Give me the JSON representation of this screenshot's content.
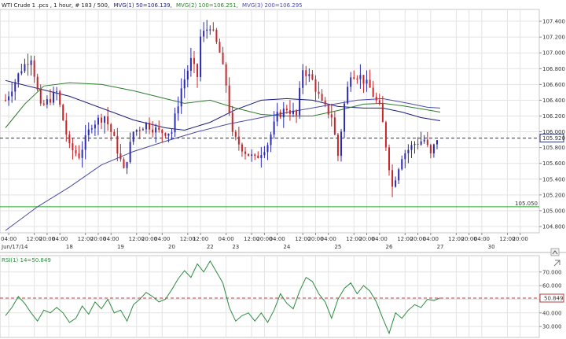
{
  "header": {
    "instrument": "WTI Crude 1 .pcs , 1 hour, # 183 / 500,",
    "mvg1": "MVG(1) 50=106.139,",
    "mvg2": "MVG(2) 100=106.251,",
    "mvg3": "MVG(3) 200=106.295"
  },
  "colors": {
    "up": "#2b2bb0",
    "down": "#c8242a",
    "mvg1": "#1c1c7a",
    "mvg2": "#2e7d2e",
    "mvg3": "#4a4aa8",
    "support": "#22aa22",
    "last_price": "#28336e",
    "rsi_line": "#2e8b40",
    "rsi_ref": "#b83c3c",
    "grid": "#e3e3e3"
  },
  "chart_data": [
    {
      "type": "candlestick",
      "y_ticks": [
        "107.400",
        "107.200",
        "107.000",
        "106.800",
        "106.600",
        "106.400",
        "106.200",
        "106.000",
        "105.800",
        "105.600",
        "105.400",
        "105.200",
        "105.000",
        "104.800"
      ],
      "ylim": [
        104.72,
        107.55
      ],
      "x_tick_labels": [
        {
          "i": 1,
          "text": "04:00"
        },
        {
          "i": 9,
          "text": "12:00"
        },
        {
          "i": 13,
          "text": "20:00"
        },
        {
          "i": 17,
          "text": "04:00"
        },
        {
          "i": 25,
          "text": "12:00"
        },
        {
          "i": 29,
          "text": "20:00"
        },
        {
          "i": 33,
          "text": "04:00"
        },
        {
          "i": 41,
          "text": "12:00"
        },
        {
          "i": 45,
          "text": "20:00"
        },
        {
          "i": 49,
          "text": "04:00"
        },
        {
          "i": 57,
          "text": "12:00"
        },
        {
          "i": 61,
          "text": "12:00"
        },
        {
          "i": 69,
          "text": "04:00"
        },
        {
          "i": 77,
          "text": "12:00"
        },
        {
          "i": 81,
          "text": "20:00"
        },
        {
          "i": 85,
          "text": "04:00"
        },
        {
          "i": 93,
          "text": "12:00"
        },
        {
          "i": 97,
          "text": "20:00"
        },
        {
          "i": 101,
          "text": "04:00"
        },
        {
          "i": 109,
          "text": "12:00"
        },
        {
          "i": 113,
          "text": "20:00"
        },
        {
          "i": 117,
          "text": "04:00"
        },
        {
          "i": 125,
          "text": "12:00"
        },
        {
          "i": 129,
          "text": "20:00"
        },
        {
          "i": 133,
          "text": "04:00"
        },
        {
          "i": 141,
          "text": "12:00"
        },
        {
          "i": 145,
          "text": "20:00"
        },
        {
          "i": 149,
          "text": "04:00"
        },
        {
          "i": 157,
          "text": "12:00"
        },
        {
          "i": 161,
          "text": "20:00"
        }
      ],
      "date_labels": [
        {
          "i": 0,
          "text": "Jun/17/14"
        },
        {
          "i": 20,
          "text": "18"
        },
        {
          "i": 36,
          "text": "19"
        },
        {
          "i": 52,
          "text": "20"
        },
        {
          "i": 64,
          "text": "22"
        },
        {
          "i": 72,
          "text": "23"
        },
        {
          "i": 88,
          "text": "24"
        },
        {
          "i": 104,
          "text": "25"
        },
        {
          "i": 120,
          "text": "26"
        },
        {
          "i": 136,
          "text": "27"
        },
        {
          "i": 152,
          "text": "30"
        }
      ],
      "x_slots": 166,
      "candle_count": 136,
      "candle_anchors": [
        [
          0,
          106.4
        ],
        [
          5,
          106.8
        ],
        [
          8,
          106.95
        ],
        [
          11,
          106.3
        ],
        [
          16,
          106.5
        ],
        [
          20,
          105.8
        ],
        [
          23,
          105.7
        ],
        [
          27,
          106.1
        ],
        [
          31,
          106.2
        ],
        [
          34,
          105.9
        ],
        [
          37,
          105.5
        ],
        [
          40,
          106.0
        ],
        [
          44,
          106.1
        ],
        [
          48,
          106.0
        ],
        [
          52,
          106.0
        ],
        [
          55,
          106.55
        ],
        [
          58,
          106.9
        ],
        [
          60,
          106.7
        ],
        [
          61,
          107.2
        ],
        [
          63,
          107.3
        ],
        [
          64,
          107.35
        ],
        [
          67,
          107.0
        ],
        [
          69,
          106.6
        ],
        [
          71,
          105.95
        ],
        [
          75,
          105.75
        ],
        [
          78,
          105.65
        ],
        [
          82,
          105.85
        ],
        [
          85,
          106.2
        ],
        [
          88,
          106.3
        ],
        [
          91,
          106.2
        ],
        [
          93,
          106.8
        ],
        [
          96,
          106.65
        ],
        [
          99,
          106.35
        ],
        [
          102,
          106.2
        ],
        [
          104,
          105.7
        ],
        [
          106,
          106.35
        ],
        [
          108,
          106.75
        ],
        [
          111,
          106.7
        ],
        [
          114,
          106.55
        ],
        [
          117,
          106.3
        ],
        [
          118,
          106.1
        ],
        [
          121,
          105.3
        ],
        [
          124,
          105.7
        ],
        [
          128,
          105.85
        ],
        [
          131,
          105.9
        ],
        [
          133,
          105.7
        ],
        [
          135,
          105.92
        ]
      ],
      "series": [
        {
          "name": "MVG(1) 50",
          "points": [
            [
              0,
              106.65
            ],
            [
              10,
              106.55
            ],
            [
              20,
              106.45
            ],
            [
              30,
              106.3
            ],
            [
              40,
              106.15
            ],
            [
              50,
              106.05
            ],
            [
              56,
              106.02
            ],
            [
              64,
              106.12
            ],
            [
              72,
              106.28
            ],
            [
              80,
              106.4
            ],
            [
              88,
              106.42
            ],
            [
              96,
              106.4
            ],
            [
              104,
              106.32
            ],
            [
              112,
              106.3
            ],
            [
              118,
              106.3
            ],
            [
              124,
              106.25
            ],
            [
              130,
              106.18
            ],
            [
              136,
              106.14
            ]
          ]
        },
        {
          "name": "MVG(2) 100",
          "points": [
            [
              0,
              106.05
            ],
            [
              6,
              106.35
            ],
            [
              12,
              106.58
            ],
            [
              20,
              106.62
            ],
            [
              30,
              106.6
            ],
            [
              40,
              106.52
            ],
            [
              50,
              106.42
            ],
            [
              56,
              106.36
            ],
            [
              64,
              106.4
            ],
            [
              72,
              106.3
            ],
            [
              80,
              106.22
            ],
            [
              88,
              106.2
            ],
            [
              96,
              106.2
            ],
            [
              104,
              106.27
            ],
            [
              112,
              106.35
            ],
            [
              118,
              106.36
            ],
            [
              124,
              106.33
            ],
            [
              130,
              106.29
            ],
            [
              136,
              106.25
            ]
          ]
        },
        {
          "name": "MVG(3) 200",
          "points": [
            [
              0,
              104.75
            ],
            [
              10,
              105.05
            ],
            [
              20,
              105.3
            ],
            [
              30,
              105.58
            ],
            [
              40,
              105.75
            ],
            [
              50,
              105.88
            ],
            [
              60,
              106.0
            ],
            [
              70,
              106.1
            ],
            [
              80,
              106.18
            ],
            [
              90,
              106.26
            ],
            [
              100,
              106.33
            ],
            [
              110,
              106.4
            ],
            [
              118,
              106.42
            ],
            [
              126,
              106.36
            ],
            [
              132,
              106.31
            ],
            [
              136,
              106.3
            ]
          ]
        }
      ],
      "support_level": 105.05,
      "support_label": "105.050",
      "last_price": 105.92,
      "last_price_label": "105.920"
    },
    {
      "type": "line",
      "title": "RSI(1) 14=50.849",
      "y_ticks": [
        "70.000",
        "60.000",
        "50.000",
        "40.000",
        "30.000"
      ],
      "ylim": [
        22,
        82
      ],
      "reference_level": 50.849,
      "reference_label": "50.849",
      "points": [
        [
          0,
          38
        ],
        [
          2,
          44
        ],
        [
          4,
          52
        ],
        [
          6,
          47
        ],
        [
          8,
          40
        ],
        [
          10,
          34
        ],
        [
          12,
          42
        ],
        [
          14,
          40
        ],
        [
          16,
          44
        ],
        [
          18,
          40
        ],
        [
          20,
          33
        ],
        [
          22,
          36
        ],
        [
          24,
          45
        ],
        [
          26,
          39
        ],
        [
          28,
          48
        ],
        [
          30,
          43
        ],
        [
          32,
          50
        ],
        [
          34,
          40
        ],
        [
          36,
          42
        ],
        [
          38,
          34
        ],
        [
          40,
          46
        ],
        [
          42,
          50
        ],
        [
          44,
          55
        ],
        [
          46,
          52
        ],
        [
          48,
          48
        ],
        [
          50,
          50
        ],
        [
          52,
          57
        ],
        [
          54,
          65
        ],
        [
          56,
          71
        ],
        [
          58,
          66
        ],
        [
          60,
          76
        ],
        [
          62,
          70
        ],
        [
          64,
          78
        ],
        [
          66,
          70
        ],
        [
          68,
          62
        ],
        [
          70,
          44
        ],
        [
          72,
          34
        ],
        [
          74,
          38
        ],
        [
          76,
          40
        ],
        [
          78,
          34
        ],
        [
          80,
          40
        ],
        [
          82,
          33
        ],
        [
          84,
          42
        ],
        [
          86,
          54
        ],
        [
          88,
          47
        ],
        [
          90,
          43
        ],
        [
          92,
          56
        ],
        [
          94,
          66
        ],
        [
          96,
          63
        ],
        [
          98,
          54
        ],
        [
          100,
          48
        ],
        [
          102,
          36
        ],
        [
          104,
          50
        ],
        [
          106,
          58
        ],
        [
          108,
          62
        ],
        [
          110,
          54
        ],
        [
          112,
          60
        ],
        [
          114,
          56
        ],
        [
          116,
          48
        ],
        [
          118,
          36
        ],
        [
          120,
          25
        ],
        [
          122,
          40
        ],
        [
          124,
          36
        ],
        [
          126,
          42
        ],
        [
          128,
          46
        ],
        [
          130,
          44
        ],
        [
          132,
          50
        ],
        [
          134,
          49
        ],
        [
          136,
          51
        ]
      ]
    }
  ]
}
